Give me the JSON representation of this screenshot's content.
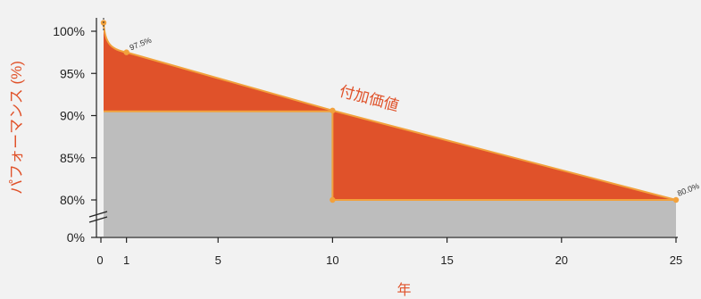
{
  "chart_data": {
    "type": "area",
    "xlabel": "年",
    "ylabel": "パフォーマンス (%)",
    "x_ticks": [
      0,
      1,
      5,
      10,
      15,
      20,
      25
    ],
    "y_ticks": [
      0,
      80,
      85,
      90,
      95,
      100
    ],
    "y_tick_labels": [
      "0%",
      "80%",
      "85%",
      "90%",
      "95%",
      "100%"
    ],
    "y_axis_break": true,
    "series": [
      {
        "name": "付加価値",
        "points": [
          {
            "x": 0,
            "y": 101
          },
          {
            "x": 1,
            "y": 97.5
          },
          {
            "x": 10,
            "y": 90.6
          },
          {
            "x": 25,
            "y": 80
          }
        ]
      },
      {
        "points": [
          {
            "x": 0,
            "y": 90.5
          },
          {
            "x": 10,
            "y": 90.5
          },
          {
            "x": 10,
            "y": 80
          },
          {
            "x": 25,
            "y": 80
          }
        ]
      }
    ],
    "annotations": [
      {
        "text": "97.5%",
        "x": 1,
        "y": 97.5
      },
      {
        "text": "80.0%",
        "x": 25,
        "y": 80
      },
      {
        "text": "付加価値"
      }
    ],
    "colors": {
      "value_area": "#e0522a",
      "base_area": "#bdbdbd",
      "line": "#f2a13c",
      "label": "#e0522a",
      "axis": "#222222"
    }
  }
}
